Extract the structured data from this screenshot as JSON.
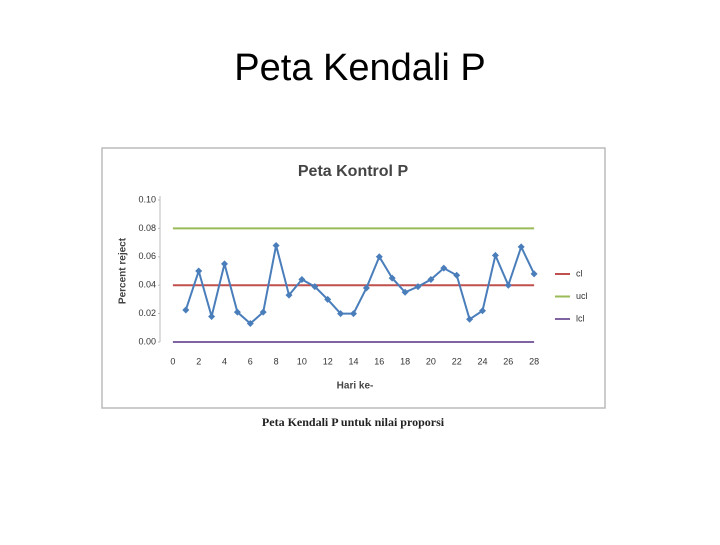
{
  "slide_title": "Peta Kendali P",
  "caption": "Peta Kendali P untuk nilai proporsi",
  "chart_data": {
    "type": "line",
    "title": "Peta Kontrol P",
    "x_label": "Hari ke-",
    "y_label": "Percent reject",
    "xlim": [
      -1,
      29
    ],
    "xticks": [
      0,
      2,
      4,
      6,
      8,
      10,
      12,
      14,
      16,
      18,
      20,
      22,
      24,
      26,
      28
    ],
    "ylim": [
      0,
      0.1
    ],
    "yticks": [
      {
        "value": 0,
        "label": "0.00"
      },
      {
        "value": 0.02,
        "label": "0.02"
      },
      {
        "value": 0.04,
        "label": "0.04"
      },
      {
        "value": 0.06,
        "label": "0.06"
      },
      {
        "value": 0.08,
        "label": "0.08"
      },
      {
        "value": 0.1,
        "label": "0.10"
      }
    ],
    "grid": false,
    "legend": "right",
    "series": [
      {
        "color": "#4a7ebb",
        "marker": "diamond",
        "x": [
          1,
          2,
          3,
          4,
          5,
          6,
          7,
          8,
          9,
          10,
          11,
          12,
          13,
          14,
          15,
          16,
          17,
          18,
          19,
          20,
          21,
          22,
          23,
          24,
          25,
          26,
          27,
          28
        ],
        "values": [
          0.0225,
          0.05,
          0.018,
          0.055,
          0.021,
          0.013,
          0.021,
          0.068,
          0.033,
          0.044,
          0.039,
          0.03,
          0.02,
          0.02,
          0.038,
          0.06,
          0.045,
          0.035,
          0.039,
          0.044,
          0.052,
          0.047,
          0.016,
          0.022,
          0.061,
          0.04,
          0.067,
          0.048
        ]
      },
      {
        "name": "cl",
        "color": "#c0504d",
        "x": [
          0,
          28
        ],
        "values": [
          0.04,
          0.04
        ]
      },
      {
        "name": "ucl",
        "color": "#9bbb59",
        "x": [
          0,
          28
        ],
        "values": [
          0.08,
          0.08
        ]
      },
      {
        "name": "lcl",
        "color": "#8064a2",
        "x": [
          0,
          28
        ],
        "values": [
          0,
          0
        ]
      }
    ]
  }
}
